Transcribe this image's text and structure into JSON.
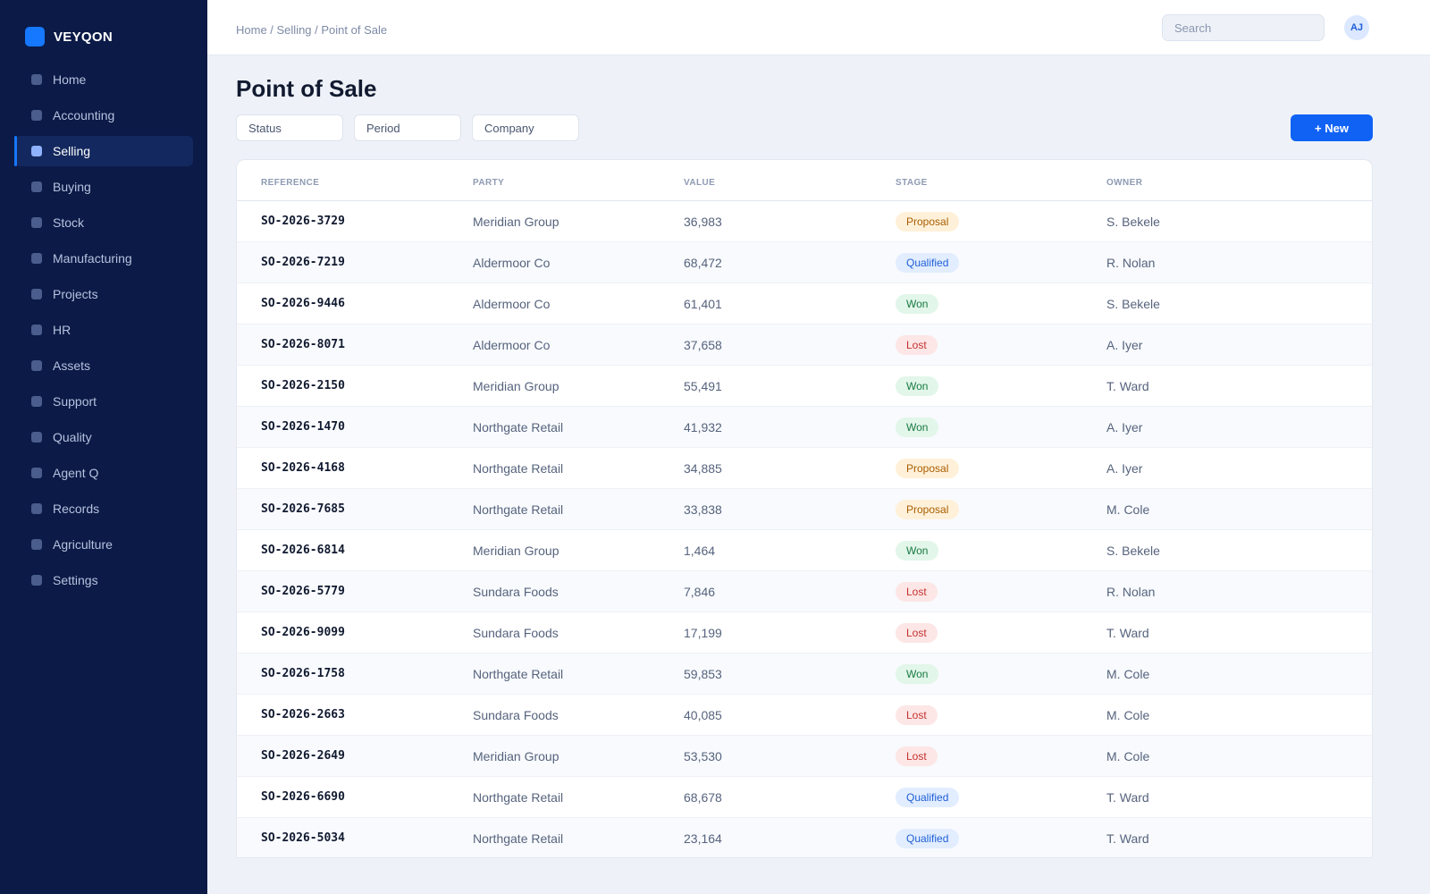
{
  "brand": {
    "name": "VEYQON"
  },
  "sidebar": {
    "items": [
      {
        "label": "Home"
      },
      {
        "label": "Accounting"
      },
      {
        "label": "Selling",
        "active": true
      },
      {
        "label": "Buying"
      },
      {
        "label": "Stock"
      },
      {
        "label": "Manufacturing"
      },
      {
        "label": "Projects"
      },
      {
        "label": "HR"
      },
      {
        "label": "Assets"
      },
      {
        "label": "Support"
      },
      {
        "label": "Quality"
      },
      {
        "label": "Agent Q"
      },
      {
        "label": "Records"
      },
      {
        "label": "Agriculture"
      },
      {
        "label": "Settings"
      }
    ]
  },
  "topbar": {
    "breadcrumb": "Home / Selling / Point of Sale",
    "search_placeholder": "Search",
    "avatar_initials": "AJ"
  },
  "page": {
    "title": "Point of Sale",
    "filters": [
      "Status",
      "Period",
      "Company"
    ],
    "new_button": "+ New"
  },
  "table": {
    "columns": [
      "REFERENCE",
      "PARTY",
      "VALUE",
      "STAGE",
      "OWNER"
    ],
    "rows": [
      {
        "reference": "SO-2026-3729",
        "party": "Meridian Group",
        "value": "36,983",
        "stage": "Proposal",
        "owner": "S. Bekele"
      },
      {
        "reference": "SO-2026-7219",
        "party": "Aldermoor Co",
        "value": "68,472",
        "stage": "Qualified",
        "owner": "R. Nolan"
      },
      {
        "reference": "SO-2026-9446",
        "party": "Aldermoor Co",
        "value": "61,401",
        "stage": "Won",
        "owner": "S. Bekele"
      },
      {
        "reference": "SO-2026-8071",
        "party": "Aldermoor Co",
        "value": "37,658",
        "stage": "Lost",
        "owner": "A. Iyer"
      },
      {
        "reference": "SO-2026-2150",
        "party": "Meridian Group",
        "value": "55,491",
        "stage": "Won",
        "owner": "T. Ward"
      },
      {
        "reference": "SO-2026-1470",
        "party": "Northgate Retail",
        "value": "41,932",
        "stage": "Won",
        "owner": "A. Iyer"
      },
      {
        "reference": "SO-2026-4168",
        "party": "Northgate Retail",
        "value": "34,885",
        "stage": "Proposal",
        "owner": "A. Iyer"
      },
      {
        "reference": "SO-2026-7685",
        "party": "Northgate Retail",
        "value": "33,838",
        "stage": "Proposal",
        "owner": "M. Cole"
      },
      {
        "reference": "SO-2026-6814",
        "party": "Meridian Group",
        "value": "1,464",
        "stage": "Won",
        "owner": "S. Bekele"
      },
      {
        "reference": "SO-2026-5779",
        "party": "Sundara Foods",
        "value": "7,846",
        "stage": "Lost",
        "owner": "R. Nolan"
      },
      {
        "reference": "SO-2026-9099",
        "party": "Sundara Foods",
        "value": "17,199",
        "stage": "Lost",
        "owner": "T. Ward"
      },
      {
        "reference": "SO-2026-1758",
        "party": "Northgate Retail",
        "value": "59,853",
        "stage": "Won",
        "owner": "M. Cole"
      },
      {
        "reference": "SO-2026-2663",
        "party": "Sundara Foods",
        "value": "40,085",
        "stage": "Lost",
        "owner": "M. Cole"
      },
      {
        "reference": "SO-2026-2649",
        "party": "Meridian Group",
        "value": "53,530",
        "stage": "Lost",
        "owner": "M. Cole"
      },
      {
        "reference": "SO-2026-6690",
        "party": "Northgate Retail",
        "value": "68,678",
        "stage": "Qualified",
        "owner": "T. Ward"
      },
      {
        "reference": "SO-2026-5034",
        "party": "Northgate Retail",
        "value": "23,164",
        "stage": "Qualified",
        "owner": "T. Ward"
      }
    ]
  },
  "colors": {
    "sidebar_bg": "#0b1a47",
    "accent": "#1062f5",
    "page_bg": "#eef2f8",
    "stage_proposal": "#fff1d9",
    "stage_qualified": "#e2edff",
    "stage_won": "#e2f6ea",
    "stage_lost": "#fde6e6"
  },
  "icons": {
    "brand": "brand-logo-icon",
    "nav": "nav-square-icon"
  }
}
